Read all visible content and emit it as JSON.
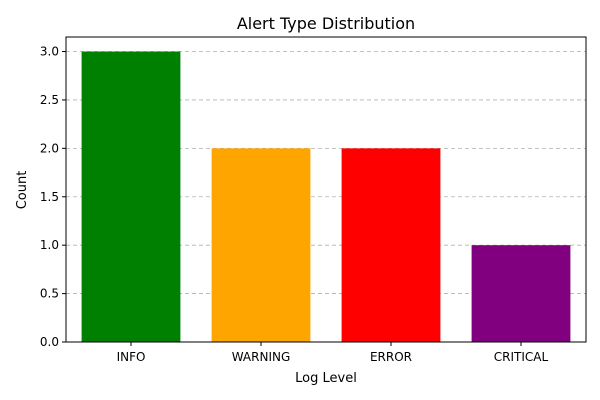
{
  "chart_data": {
    "type": "bar",
    "title": "Alert Type Distribution",
    "xlabel": "Log Level",
    "ylabel": "Count",
    "categories": [
      "INFO",
      "WARNING",
      "ERROR",
      "CRITICAL"
    ],
    "values": [
      3,
      2,
      2,
      1
    ],
    "colors": [
      "#008000",
      "#FFA500",
      "#FF0000",
      "#800080"
    ],
    "ylim": [
      0,
      3.15
    ],
    "yticks": [
      0.0,
      0.5,
      1.0,
      1.5,
      2.0,
      2.5,
      3.0
    ],
    "ytick_labels": [
      "0.0",
      "0.5",
      "1.0",
      "1.5",
      "2.0",
      "2.5",
      "3.0"
    ],
    "grid": "y, dashed",
    "legend": "none"
  }
}
